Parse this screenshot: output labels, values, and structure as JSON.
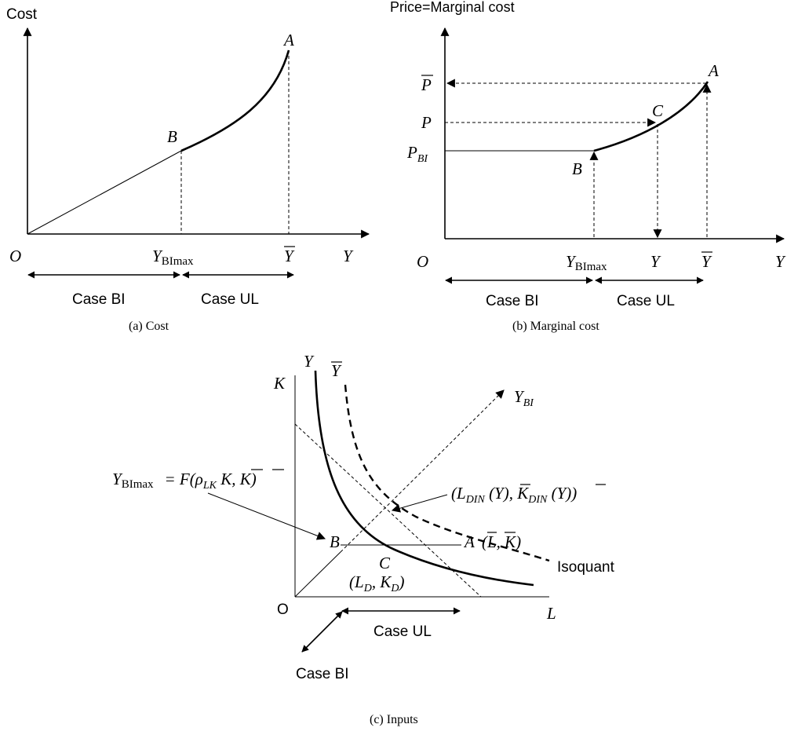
{
  "panel_a": {
    "y_axis_label": "Cost",
    "x_axis_label": "Y",
    "origin": "O",
    "point_a": "A",
    "point_b": "B",
    "ybimax_main": "Y",
    "ybimax_sub": "BImax",
    "ybar": "Y",
    "case_bi": "Case BI",
    "case_ul": "Case UL",
    "caption": "(a) Cost"
  },
  "panel_b": {
    "y_axis_label": "Price=Marginal cost",
    "x_axis_label": "Y",
    "origin": "O",
    "pbar": "P",
    "p": "P",
    "pbi_main": "P",
    "pbi_sub": "BI",
    "point_a": "A",
    "point_b": "B",
    "point_c": "C",
    "ybimax_main": "Y",
    "ybimax_sub": "BImax",
    "y": "Y",
    "ybar": "Y",
    "case_bi": "Case BI",
    "case_ul": "Case UL",
    "caption": "(b) Marginal cost"
  },
  "panel_c": {
    "y_axis_label": "K",
    "x_axis_label": "L",
    "origin": "O",
    "curve_y": "Y",
    "curve_ybar": "Y",
    "ray_main": "Y",
    "ray_sub": "BI",
    "formula_lhs_main": "Y",
    "formula_lhs_sub": "BImax",
    "formula_rhs": "= F(ρ",
    "formula_rho_sub": "LK",
    "formula_rest": " K, K)",
    "din_label": "(L",
    "din_sub1": "DIN",
    "din_mid": " (Y), K",
    "din_sub2": "DIN",
    "din_end": " (Y))",
    "point_a": "A",
    "point_a_coords": "(L, K)",
    "point_b": "B",
    "point_c": "C",
    "point_c_open": "(L",
    "point_c_sub1": "D",
    "point_c_mid": ", K",
    "point_c_sub2": "D",
    "point_c_close": ")",
    "isoquant": "Isoquant",
    "case_ul": "Case UL",
    "case_bi": "Case BI",
    "caption": "(c) Inputs"
  }
}
